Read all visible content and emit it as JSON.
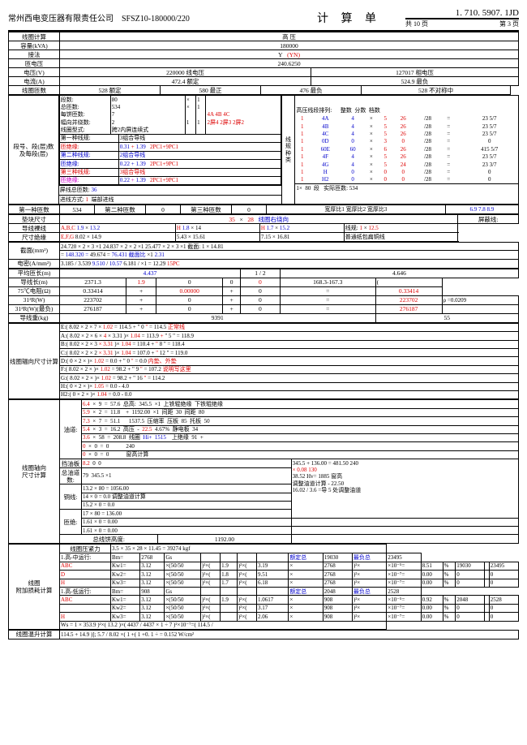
{
  "header": {
    "company": "常州西电变压器有限责任公司",
    "model": "SFSZ10-180000/220",
    "title": "计 算 单",
    "doc_no": "1. 710. 5907. 1JD",
    "pages_total": "共 10 页",
    "page_no": "第 3 页"
  },
  "top": {
    "coil_calc": "线圈计算",
    "hv": "高   压",
    "capacity_kva": "容量(kVA)",
    "capacity_val": "180000",
    "conn": "接法",
    "conn_val": "Y",
    "conn_yn": "(YN)",
    "turn_v": "匝电压",
    "turn_v_val": "240.6250",
    "volt": "电压(V)",
    "line_v": "220000 线电压",
    "phase_v": "127017  相电压",
    "current": "电流(A)",
    "rated": "472.4 额定",
    "max_load": "524.9 最负",
    "coil_turns": "线圈匝数",
    "t528": "528",
    "t_rated": "额定",
    "t580": "580",
    "t_max": "最正",
    "t476": "476",
    "t_minload": "最负",
    "t_asym": "不对称中"
  },
  "seg": {
    "label": "段号、段(层)数\n及每段(层)",
    "rows": [
      [
        "段数:",
        "80",
        "×",
        "1",
        ""
      ],
      [
        "总匝数:",
        "534",
        "×",
        "1",
        ""
      ],
      [
        "每饼匝数:",
        "7",
        "",
        "",
        "4A  4B  4C"
      ],
      [
        "幅向并绕数:",
        "2",
        "1",
        "1",
        "2屏4  2屏3  2屏2"
      ],
      [
        "线圈型式:",
        "跨2内屏连续式",
        "",
        "",
        ""
      ]
    ],
    "wire_groups": [
      {
        "t": "第一种线规:",
        "v": "3组合导线",
        "c": "0"
      },
      {
        "t": "匝绝缘:",
        "a": "0.31",
        "b": "1.39",
        "c": "2PC1+9PC1",
        "col": "red"
      },
      {
        "t": "第二种线规:",
        "v": "2组合导线",
        "c": "0",
        "col": "blue"
      },
      {
        "t": "匝绝缘:",
        "a": "0.22",
        "b": "1.39",
        "c": "2PC1+9PC1",
        "col": "blue"
      },
      {
        "t": "第三种线规:",
        "v": "3组合导线",
        "c": "0",
        "col": "red"
      },
      {
        "t": "匝绝缘:",
        "a": "0.22",
        "b": "1.39",
        "c": "2PC1+9PC1",
        "col": "mag"
      }
    ],
    "shield_turns": "屏线总匝数:",
    "shield_val": "36",
    "feed": "进线方式:",
    "feed_val": "1",
    "feed_note": "端部进线",
    "kind1": "第一种匝数",
    "k1v": "534",
    "kind2": "第二种匝数",
    "k2v": "0",
    "kind3": "第三种匝数",
    "k3v": "0"
  },
  "hv_seg": {
    "title": "高压线段排列:",
    "cols": [
      "整数",
      "分数",
      "档数"
    ],
    "rows": [
      [
        "1",
        "4A",
        "4",
        "×",
        "5",
        "26",
        "/28",
        "=",
        "",
        "23 5/7"
      ],
      [
        "1",
        "4B",
        "4",
        "×",
        "5",
        "26",
        "/28",
        "=",
        "",
        "23 5/7"
      ],
      [
        "1",
        "4C",
        "4",
        "×",
        "5",
        "26",
        "/28",
        "=",
        "",
        "23 5/7"
      ],
      [
        "1",
        "0D",
        "0",
        "×",
        "3",
        "0",
        "/28",
        "=",
        "",
        "0"
      ],
      [
        "1",
        "60E",
        "60",
        "×",
        "6",
        "26",
        "/28",
        "=",
        "",
        "415 5/7"
      ],
      [
        "1",
        "4F",
        "4",
        "×",
        "5",
        "26",
        "/28",
        "=",
        "",
        "23 5/7"
      ],
      [
        "1",
        "4G",
        "4",
        "×",
        "5",
        "24",
        "/28",
        "=",
        "",
        "23 3/7"
      ],
      [
        "1",
        "H",
        "0",
        "×",
        "0",
        "0",
        "/28",
        "=",
        "",
        "0"
      ],
      [
        "1",
        "H2",
        "0",
        "×",
        "0",
        "0",
        "/28",
        "=",
        "",
        "0"
      ]
    ],
    "footer": [
      "1×",
      "80",
      "段",
      "",
      "实际匝数:",
      "534"
    ],
    "ratios": [
      "宽厚比1",
      "宽厚比2",
      "宽厚比3"
    ],
    "rvals": [
      "6.9",
      "7.8",
      "8.9"
    ]
  },
  "pad": {
    "label": "垫块尺寸",
    "v1": "35",
    "v2": "28",
    "note": "线圈右绕向",
    "shield": "屏蔽线:",
    "wire_bare": "导线裸线",
    "abc": "A,B,C",
    "v_a": "1.9",
    "v_b": "13.2",
    "h1": "H",
    "v_h1": "1.8",
    "v_h2": "14",
    "h2": "H",
    "v_h3": "1.7",
    "v_h4": "15.2",
    "wire1": "线规:",
    "wv1": "1",
    "wv2": "12.5",
    "dim_ins": "尺寸绝缘",
    "efg": "E,F,G",
    "e1": "8.02",
    "e2": "14.9",
    "e3": "5.43",
    "e4": "15.61",
    "e5": "7.15",
    "e6": "16.81",
    "normal": "普通纸包扁铜线"
  },
  "cross": {
    "label": "截面(mm²)",
    "r1": [
      "24.720",
      "×",
      "2",
      "×",
      "3",
      "×1",
      "24.837",
      "×",
      "2",
      "×",
      "2",
      "×1",
      "25.477",
      "×",
      "2",
      "×",
      "3",
      "×1",
      "截面:",
      "1",
      "×",
      "14.81"
    ],
    "r2": [
      "=",
      "148.320",
      "",
      "=",
      "49.674",
      "",
      "=",
      "76.431",
      "",
      "截面比",
      "×1",
      "2.31"
    ],
    "dens": "电密(A/mm²)",
    "dv": [
      "3.185",
      "/",
      "3.539",
      "",
      "9.510",
      "/",
      "10.57",
      "",
      "6.181",
      "/",
      "",
      "",
      "×1",
      "=",
      "12.29",
      "15PC"
    ]
  },
  "avg_turn": {
    "label": "平均匝长(m)",
    "c": "4.437",
    "c2": "1",
    "c3": "2",
    "r": "4.646"
  },
  "cond_len": {
    "label": "导线长(m)",
    "a": "2371.3",
    "b": "1.9",
    "c": "0",
    "d": "0",
    "e": "0",
    "f": "168.3-",
    "g": "167.3",
    "h": "("
  },
  "r75": {
    "label": "75℃电阻(Ω)",
    "a": "0.33414",
    "b": "+",
    "c": "0.00000",
    "d": "+",
    "e": "0",
    "f": "=",
    "g": "0.33414"
  },
  "ir31": {
    "label": "31²R(W)",
    "a": "223702",
    "b": "+",
    "c": "0",
    "d": "+",
    "e": "0",
    "f": "=",
    "g": "223702",
    "rho": "ρ =0.0209"
  },
  "ir31max": {
    "label": "31²R(W)(最负)",
    "a": "276187",
    "b": "+",
    "c": "0",
    "d": "+",
    "e": "0",
    "f": "=",
    "g": "276187"
  },
  "weight": {
    "label": "导线重(kg)",
    "v": "9391",
    "r": "55"
  },
  "axial": {
    "label": "线圈辐向尺寸计算",
    "rows": [
      [
        "E:(",
        "8.02",
        "×",
        "2",
        "×",
        "7",
        "×",
        "1.02",
        "=",
        "114.5",
        "+",
        "\"",
        "0",
        "\"",
        "=",
        "114.5",
        "正常线"
      ],
      [
        "A:(",
        "8.02",
        "×",
        "2",
        "×",
        "6",
        "×",
        "4",
        "× 3.31",
        ")×",
        "1.04",
        "=",
        "113.9",
        "+",
        "\"",
        "5",
        "\"",
        "=",
        "118.9"
      ],
      [
        "B:(",
        "8.02",
        "×",
        "2",
        "×",
        "",
        "3",
        "× 3.31",
        ")×",
        "1.04",
        "=",
        "110.4",
        "+",
        "\"",
        "8",
        "\"",
        "=",
        "118.4"
      ],
      [
        "C:(",
        "8.02",
        "×",
        "2",
        "×",
        "",
        "2",
        "× 3.31",
        ")×",
        "1.04",
        "=",
        "107.0",
        "+",
        "\"",
        "12",
        "\"",
        "=",
        "119.0"
      ],
      [
        "D:(",
        "0",
        "×",
        "2",
        "×",
        "",
        ")×",
        "1.02",
        "=",
        "0.0",
        "+",
        "\"",
        "0",
        "\"",
        "=",
        "0.0",
        "内垫、外垫"
      ],
      [
        "F:(",
        "8.02",
        "×",
        "2",
        "×",
        "",
        ")×",
        "1.02",
        "=",
        "98.2",
        "+",
        "\"",
        "9",
        "\"",
        "=",
        "107.2",
        "说明写这里"
      ],
      [
        "G:(",
        "8.02",
        "×",
        "2",
        "×",
        "",
        ")×",
        "1.02",
        "=",
        "98.2",
        "+",
        "\"",
        "16",
        "\"",
        "=",
        "114.2"
      ],
      [
        "H:(",
        "0",
        "×",
        "2",
        "×",
        "",
        ")×",
        "1.05",
        "=",
        "0.0",
        "-",
        "",
        "",
        "",
        "",
        "4.0"
      ],
      [
        "H2:(",
        "0",
        "×",
        "2",
        "×",
        "",
        ")×",
        "1.04",
        "=",
        "0.0",
        "-",
        "",
        "",
        "",
        "",
        "0.0"
      ]
    ]
  },
  "radial": {
    "label": "线圈轴向\n尺寸计算",
    "oil": "油道:",
    "oil_rows": [
      [
        "6.4",
        "×",
        "9",
        "=",
        "57.6",
        "总高:",
        "345.5",
        "×1",
        "上铁辊绝缘",
        "下铁辊绝缘"
      ],
      [
        "5.9",
        "×",
        "2",
        "=",
        "11.8",
        "",
        "+",
        "1192.00",
        "×1",
        "间距",
        "30",
        "间距",
        "80"
      ],
      [
        "7.3",
        "×",
        "7",
        "=",
        "51.1",
        "",
        "",
        "1537.5",
        "压缩率",
        "压板",
        "85",
        "托板",
        "50"
      ],
      [
        "5.4",
        "×",
        "3",
        "=",
        "16.2",
        "高压",
        "-",
        "22.5",
        "4.67%",
        "静电板",
        "34"
      ],
      [
        "3.6",
        "×",
        "58",
        "=",
        "208.8",
        "线圈",
        "Hi+",
        "1515",
        "",
        "上绝缘",
        "91",
        "+"
      ],
      [
        "0",
        "×",
        "0",
        "=",
        "0",
        "",
        "",
        "",
        "",
        "",
        "240"
      ],
      [
        "0",
        "×",
        "0",
        "=",
        "0",
        "",
        "",
        "",
        "",
        "",
        "窗高计算"
      ]
    ],
    "baffle": "挡油板",
    "b1": "8.2",
    "b2": "0",
    "b3": "0",
    "total_oil": "总油道数:",
    "to1": "79",
    "to2": "345.5",
    "to3": "×1",
    "box": [
      "345.5",
      "+",
      "136.00",
      "=",
      "481.50",
      "240"
    ],
    "box2": [
      "×",
      "0.08",
      "130"
    ],
    "box3": [
      "",
      "38.52",
      "Hv=",
      "1885",
      "窗高"
    ],
    "box4": [
      "-",
      "22.50"
    ],
    "box5": [
      "16.02",
      "/",
      "3.6",
      "=导",
      "5",
      "处调整油道"
    ],
    "copper": "铜线:",
    "cu": [
      "13.2",
      "×",
      "80",
      "=",
      "1056.00"
    ],
    "cu2": [
      "14",
      "×",
      "0",
      "=",
      "0.0",
      "调整油道计算"
    ],
    "cu3": [
      "15.2",
      "×",
      "0",
      "=",
      "0.0"
    ],
    "ins": "匝绝:",
    "in1": [
      "17",
      "×",
      "80",
      "=",
      "136.00"
    ],
    "in2": [
      "1.61",
      "×",
      "0",
      "=",
      "0.00"
    ],
    "in3": [
      "1.61",
      "×",
      "0",
      "=",
      "0.00"
    ],
    "total_h": "总线饼高度:",
    "th": "1192.00"
  },
  "force": {
    "label": "线圈\n附加损耗计算",
    "press": "线圈压紧力",
    "fv": [
      "3.5",
      "×",
      "35",
      "×",
      "28",
      "×",
      "11.45",
      "=",
      "39274",
      "kgf"
    ],
    "rows": [
      [
        "1.高-中运行:",
        "Bm=",
        "2768",
        "Gs",
        "",
        "",
        "",
        "",
        "额定总",
        "19030",
        "最负总",
        "23495"
      ],
      [
        "ABC",
        "Kw1=",
        "3.12",
        "×(50/50",
        ")²×(",
        "1.9",
        ")²×(",
        "3.19",
        "×",
        "2768",
        ")²×",
        "×10⁻⁵=",
        "8.51",
        "%",
        "19030",
        "",
        "23495"
      ],
      [
        "D",
        "Kw2=",
        "3.12",
        "×(50/50",
        ")²×(",
        "1.8",
        ")²×(",
        "9.51",
        "×",
        "2768",
        ")²×",
        "×10⁻⁷=",
        "0.00",
        "%",
        "0",
        "",
        "0"
      ],
      [
        "H",
        "Kw3=",
        "3.12",
        "×(50/50",
        ")²×(",
        "1.7",
        ")²×(",
        "6.18",
        "×",
        "2768",
        ")²×",
        "×10⁻⁷=",
        "0.00",
        "%",
        "0",
        "",
        "0"
      ],
      [
        "1.高-低运行:",
        "Bm=",
        "908",
        "Gs",
        "",
        "",
        "",
        "",
        "额定总",
        "2048",
        "最负总",
        "2528"
      ],
      [
        "ABC",
        "Kw1=",
        "3.12",
        "×(50/50",
        ")²×(",
        "1.9",
        ")²×(",
        "1.0617",
        "×",
        "908",
        ")²×",
        "×10⁻⁵=",
        "0.92",
        "%",
        "2048",
        "",
        "2528"
      ],
      [
        "",
        "Kw2=",
        "3.12",
        "×(50/50",
        ")²×(",
        "",
        ")²×(",
        "3.17",
        "×",
        "908",
        ")²×",
        "×10⁻⁷=",
        "0.00",
        "%",
        "0",
        "",
        "0"
      ],
      [
        "H",
        "Kw3=",
        "3.12",
        "×(50/50",
        ")²×(",
        "",
        ")²×(",
        "2.06",
        "×",
        "908",
        ")²×",
        "×10⁻⁷=",
        "0.00",
        "%",
        "0",
        "",
        "0"
      ]
    ],
    "ws": [
      "Ws",
      "=",
      "1",
      "×",
      "353.9",
      ")²×(",
      "13.2",
      ")×(",
      "4437",
      "/",
      "4437",
      "×",
      "1",
      "÷",
      "7",
      ")²×10⁻⁷=(",
      "114.5",
      "/"
    ],
    "last": [
      "线圈温升计算",
      "114.5",
      "+",
      "14.9",
      ")];",
      "5.7",
      "/",
      "8.02",
      "×(",
      "1",
      "+(",
      "1",
      "+0.",
      "1",
      "÷",
      "",
      "=",
      "0.152",
      "W/cm²"
    ]
  }
}
